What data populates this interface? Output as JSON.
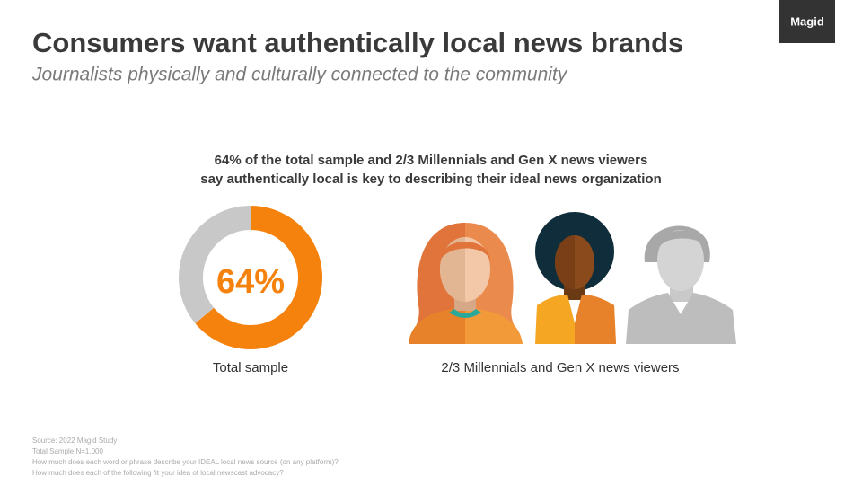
{
  "logo": "Magid",
  "title": "Consumers want authentically local news brands",
  "subtitle": "Journalists physically and culturally connected to the community",
  "headline": [
    "64% of the total sample and 2/3 Millennials and Gen X news viewers",
    "say authentically local is key to describing their ideal news organization"
  ],
  "chart_data": {
    "type": "donut",
    "categories": [
      null,
      null
    ],
    "values": [
      64,
      36
    ],
    "value_labels": [
      "64%",
      null
    ],
    "colors": [
      "#f5820d",
      "#c8c8c8"
    ],
    "caption": "Total sample"
  },
  "people": {
    "caption": "2/3 Millennials and Gen X news viewers"
  },
  "notes": [
    "Source: 2022 Magid Study",
    "Total Sample N=1,000",
    "How much does each word or phrase describe your IDEAL local news source (on any platform)?",
    "How much does each of the following fit your idea of local newscast advocacy?"
  ]
}
